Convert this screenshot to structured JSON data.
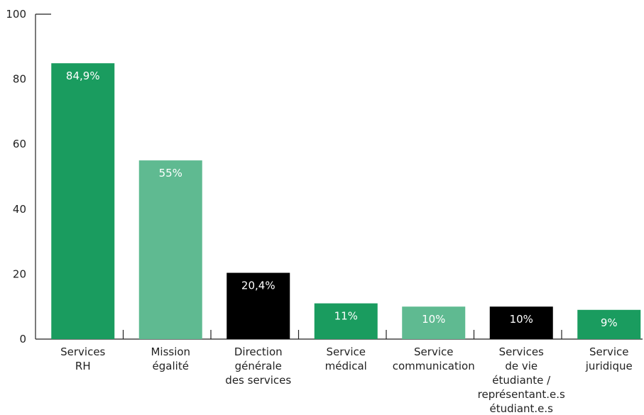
{
  "chart_data": {
    "type": "bar",
    "title": "",
    "xlabel": "",
    "ylabel": "",
    "ylim": [
      0,
      100
    ],
    "yticks": [
      0,
      20,
      40,
      60,
      80,
      100
    ],
    "grid": false,
    "legend": "none",
    "categories": [
      [
        "Services",
        "RH"
      ],
      [
        "Mission",
        "égalité"
      ],
      [
        "Direction",
        "générale",
        "des services"
      ],
      [
        "Service",
        "médical"
      ],
      [
        "Service",
        "communication"
      ],
      [
        "Services",
        "de vie",
        "étudiante /",
        "représentant.e.s",
        "étudiant.e.s"
      ],
      [
        "Service",
        "juridique"
      ]
    ],
    "values": [
      84.9,
      55,
      20.4,
      11,
      10,
      10,
      9
    ],
    "value_labels": [
      "84,9%",
      "55%",
      "20,4%",
      "11%",
      "10%",
      "10%",
      "9%"
    ],
    "colors": [
      "#1a9c5f",
      "#5fba91",
      "#000000",
      "#1a9c5f",
      "#5fba91",
      "#000000",
      "#1a9c5f"
    ]
  }
}
